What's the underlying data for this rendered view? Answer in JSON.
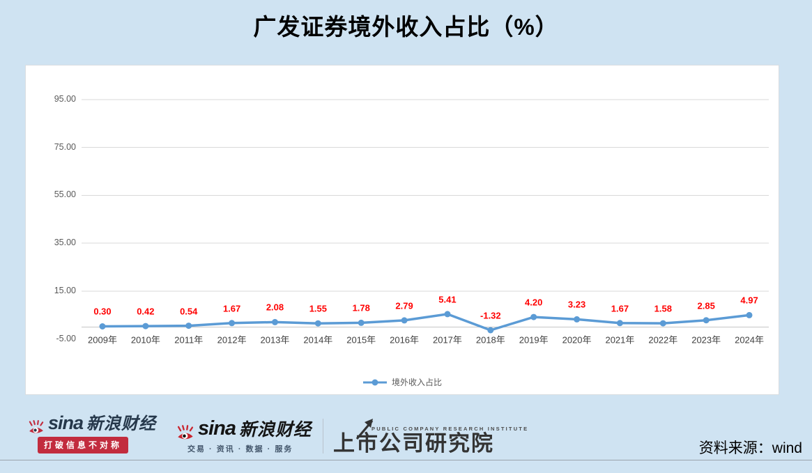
{
  "title": "广发证券境外收入占比（%）",
  "chart_data": {
    "type": "line",
    "title": "广发证券境外收入占比（%）",
    "xlabel": "",
    "ylabel": "",
    "categories": [
      "2009年",
      "2010年",
      "2011年",
      "2012年",
      "2013年",
      "2014年",
      "2015年",
      "2016年",
      "2017年",
      "2018年",
      "2019年",
      "2020年",
      "2021年",
      "2022年",
      "2023年",
      "2024年"
    ],
    "series": [
      {
        "name": "境外收入占比",
        "values": [
          0.3,
          0.42,
          0.54,
          1.67,
          2.08,
          1.55,
          1.78,
          2.79,
          5.41,
          -1.32,
          4.2,
          3.23,
          1.67,
          1.58,
          2.85,
          4.97
        ],
        "labels": [
          "0.30",
          "0.42",
          "0.54",
          "1.67",
          "2.08",
          "1.55",
          "1.78",
          "2.79",
          "5.41",
          "-1.32",
          "4.20",
          "3.23",
          "1.67",
          "1.58",
          "2.85",
          "4.97"
        ],
        "color": "#5B9BD5"
      }
    ],
    "y_ticks": [
      {
        "value": 95,
        "label": "95.00",
        "gridline": true
      },
      {
        "value": 75,
        "label": "75.00",
        "gridline": true
      },
      {
        "value": 55,
        "label": "55.00",
        "gridline": true
      },
      {
        "value": 35,
        "label": "35.00",
        "gridline": true
      },
      {
        "value": 15,
        "label": "15.00",
        "gridline": true
      },
      {
        "value": -5,
        "label": "-5.00",
        "gridline": false
      }
    ],
    "ylim": [
      -5,
      101
    ],
    "grid": true,
    "legend_position": "bottom",
    "data_label_color": "#FF0000",
    "grid_color": "#d9d9d9",
    "axis_color": "#c6c6c6"
  },
  "legend": {
    "label": "境外收入占比"
  },
  "footer": {
    "watermark": {
      "brand": "sina",
      "brand_cn": "新浪财经",
      "slogan": "打破信息不对称",
      "badge_color": "#c22c3e"
    },
    "center_logo": {
      "brand": "sina",
      "brand_cn": "新浪财经",
      "tagline": "交易 · 资讯 · 数据 · 服务",
      "institute": "上市公司研究院",
      "institute_en": "PUBLIC COMPANY RESEARCH INSTITUTE"
    },
    "source": "资料来源：wind"
  },
  "colors": {
    "background": "#cfe3f2",
    "panel": "#ffffff",
    "series_blue": "#5B9BD5",
    "data_label_red": "#FF0000",
    "sina_red": "#c9252f",
    "sina_navy": "#26384b"
  }
}
